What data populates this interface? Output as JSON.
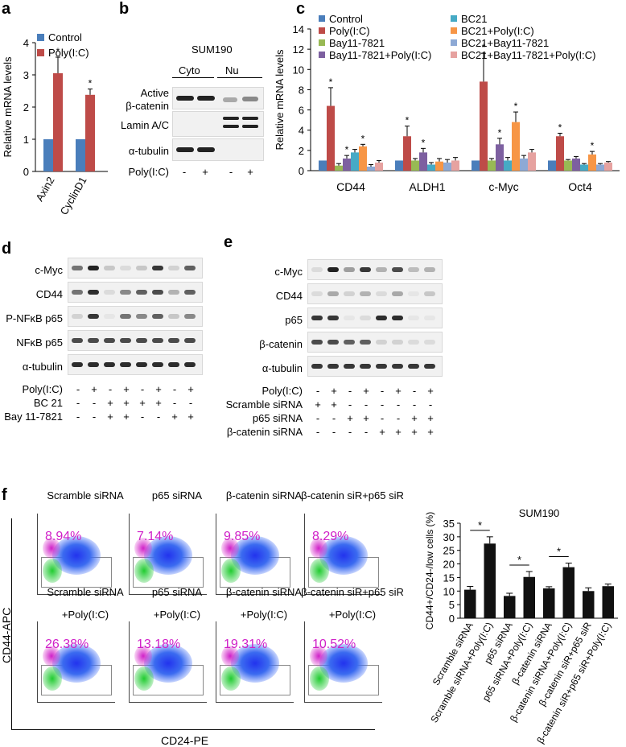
{
  "panels": {
    "a": "a",
    "b": "b",
    "c": "c",
    "d": "d",
    "e": "e",
    "f": "f"
  },
  "colors": {
    "control": "#4a7ebb",
    "polyic": "#be4b48",
    "bay": "#98b954",
    "bay_poly": "#7d60a0",
    "bc21": "#46aac5",
    "bc21_poly": "#f79646",
    "bc21_bay": "#8da9d5",
    "bc21_bay_poly": "#e6a2a0",
    "black_bar": "#111111",
    "magenta": "#d020c8"
  },
  "chart_data": [
    {
      "id": "a",
      "type": "bar",
      "ylabel": "Relative mRNA levels",
      "ylim": [
        0,
        4
      ],
      "yticks": [
        "0",
        "1",
        "2",
        "3",
        "4"
      ],
      "categories": [
        "Axin2",
        "CyclinD1"
      ],
      "legend": [
        "Control",
        "Poly(I:C)"
      ],
      "series": [
        {
          "name": "Control",
          "values": [
            1.0,
            1.0
          ],
          "errors": [
            0,
            0
          ]
        },
        {
          "name": "Poly(I:C)",
          "values": [
            3.05,
            2.38
          ],
          "errors": [
            0.5,
            0.18
          ]
        }
      ],
      "significance": [
        "*",
        "*"
      ]
    },
    {
      "id": "c",
      "type": "bar",
      "ylabel": "Relative mRNA levels",
      "ylim": [
        0,
        14
      ],
      "yticks": [
        "0",
        "2",
        "4",
        "6",
        "8",
        "10",
        "12",
        "14"
      ],
      "categories": [
        "CD44",
        "ALDH1",
        "c-Myc",
        "Oct4"
      ],
      "legend": [
        "Control",
        "BC21",
        "Poly(I:C)",
        "BC21+Poly(I:C)",
        "Bay11-7821",
        "BC21+Bay11-7821",
        "Bay11-7821+Poly(I:C)",
        "BC21+Bay11-7821+Poly(I:C)"
      ],
      "series": [
        {
          "name": "Control",
          "values": [
            1.0,
            1.0,
            1.0,
            1.0
          ],
          "errors": [
            0,
            0,
            0,
            0
          ]
        },
        {
          "name": "Poly(I:C)",
          "values": [
            6.4,
            3.4,
            8.8,
            3.4
          ],
          "errors": [
            1.8,
            1.0,
            2.8,
            0.3
          ]
        },
        {
          "name": "Bay11-7821",
          "values": [
            0.5,
            1.0,
            1.0,
            1.0
          ],
          "errors": [
            0.2,
            0.2,
            0.2,
            0.1
          ]
        },
        {
          "name": "Bay11-7821+Poly(I:C)",
          "values": [
            1.2,
            1.8,
            2.6,
            1.2
          ],
          "errors": [
            0.3,
            0.4,
            0.6,
            0.2
          ]
        },
        {
          "name": "BC21",
          "values": [
            1.8,
            0.6,
            1.0,
            0.6
          ],
          "errors": [
            0.3,
            0.2,
            0.3,
            0.1
          ]
        },
        {
          "name": "BC21+Poly(I:C)",
          "values": [
            2.4,
            0.9,
            4.8,
            1.6
          ],
          "errors": [
            0.2,
            0.3,
            1.0,
            0.3
          ]
        },
        {
          "name": "BC21+Bay11-7821",
          "values": [
            0.4,
            0.8,
            1.2,
            0.6
          ],
          "errors": [
            0.2,
            0.3,
            0.3,
            0.1
          ]
        },
        {
          "name": "BC21+Bay11-7821+Poly(I:C)",
          "values": [
            0.8,
            1.0,
            1.8,
            0.8
          ],
          "errors": [
            0.2,
            0.3,
            0.3,
            0.1
          ]
        }
      ],
      "significance_labels": [
        "*",
        "*",
        "*",
        "*",
        "*",
        "*",
        "*",
        "*",
        "*",
        "*",
        "*"
      ]
    },
    {
      "id": "f-bar",
      "type": "bar",
      "title": "SUM190",
      "ylabel": "CD44+/CD24-/low cells (%)",
      "ylim": [
        0,
        35
      ],
      "yticks": [
        "0",
        "5",
        "10",
        "15",
        "20",
        "25",
        "30",
        "35"
      ],
      "categories": [
        "Scramble siRNA",
        "Scramble siRNA+Poly(I:C)",
        "p65 siRNA",
        "p65 siRNA+Poly(I:C)",
        "β-catenin siRNA",
        "β-catenin siRNA+Poly(I:C)",
        "β-catenin siR+p65 siR",
        "β-catenin siR+p65 siR+Poly(I:C)"
      ],
      "values": [
        10.5,
        27.5,
        8.2,
        15.2,
        11.0,
        18.8,
        10.0,
        11.8
      ],
      "errors": [
        1.2,
        2.5,
        1.0,
        2.0,
        0.6,
        1.5,
        1.2,
        0.8
      ],
      "significance": [
        "*",
        "*",
        "*"
      ]
    }
  ],
  "panel_b": {
    "cell_line": "SUM190",
    "fractions": [
      "Cyto",
      "Nu"
    ],
    "rows": [
      "Active",
      "β-catenin",
      "Lamin A/C",
      "α-tubulin"
    ],
    "treatment_label": "Poly(I:C)",
    "signs": [
      "-",
      "+",
      "-",
      "+"
    ]
  },
  "panel_d": {
    "rows": [
      "c-Myc",
      "CD44",
      "P-NFκB p65",
      "NFκB p65",
      "α-tubulin"
    ],
    "treatments": [
      {
        "label": "Poly(I:C)",
        "signs": [
          "-",
          "+",
          "-",
          "+",
          "-",
          "+",
          "-",
          "+"
        ]
      },
      {
        "label": "BC 21",
        "signs": [
          "-",
          "-",
          "+",
          "+",
          "+",
          "+",
          "-",
          "-"
        ]
      },
      {
        "label": "Bay 11-7821",
        "signs": [
          "-",
          "-",
          "+",
          "+",
          "-",
          "-",
          "+",
          "+"
        ]
      }
    ]
  },
  "panel_e": {
    "rows": [
      "c-Myc",
      "CD44",
      "p65",
      "β-catenin",
      "α-tubulin"
    ],
    "treatments": [
      {
        "label": "Poly(I:C)",
        "signs": [
          "-",
          "+",
          "-",
          "+",
          "-",
          "+",
          "-",
          "+"
        ]
      },
      {
        "label": "Scramble siRNA",
        "signs": [
          "+",
          "+",
          "-",
          "-",
          "-",
          "-",
          "-",
          "-"
        ]
      },
      {
        "label": "p65 siRNA",
        "signs": [
          "-",
          "-",
          "+",
          "+",
          "-",
          "-",
          "+",
          "+"
        ]
      },
      {
        "label": "β-catenin siRNA",
        "signs": [
          "-",
          "-",
          "-",
          "-",
          "+",
          "+",
          "+",
          "+"
        ]
      }
    ]
  },
  "panel_f_flow": {
    "yaxis": "CD44-APC",
    "xaxis": "CD24-PE",
    "plots": [
      {
        "title": "Scramble siRNA",
        "subtitle": "",
        "percent": "8.94%"
      },
      {
        "title": "p65 siRNA",
        "subtitle": "",
        "percent": "7.14%"
      },
      {
        "title": "β-catenin siRNA",
        "subtitle": "",
        "percent": "9.85%"
      },
      {
        "title": "β-catenin siR+p65 siR",
        "subtitle": "",
        "percent": "8.29%"
      },
      {
        "title": "Scramble siRNA",
        "subtitle": "+Poly(I:C)",
        "percent": "26.38%"
      },
      {
        "title": "p65 siRNA",
        "subtitle": "+Poly(I:C)",
        "percent": "13.18%"
      },
      {
        "title": "β-catenin siRNA",
        "subtitle": "+Poly(I:C)",
        "percent": "19.31%"
      },
      {
        "title": "β-catenin siR+p65 siR",
        "subtitle": "+Poly(I:C)",
        "percent": "10.52%"
      }
    ]
  }
}
